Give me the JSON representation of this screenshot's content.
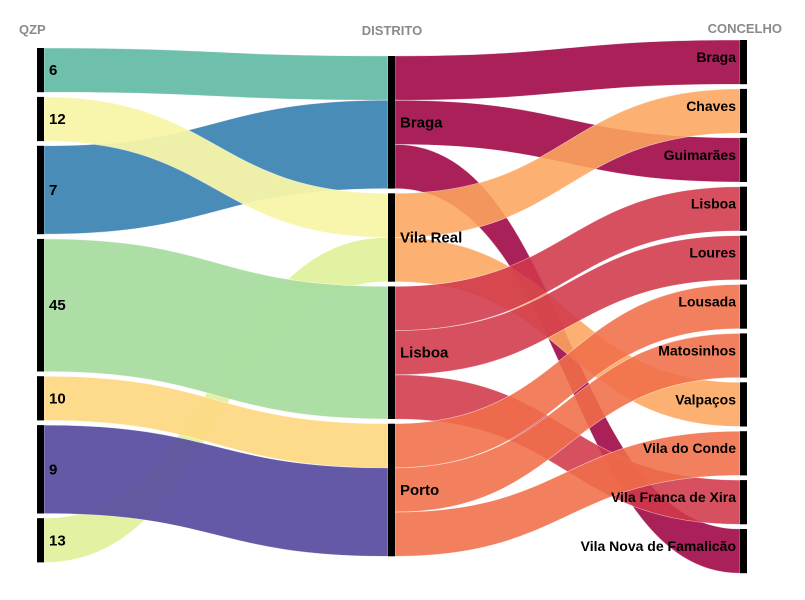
{
  "headers": {
    "left": "QZP",
    "middle": "DISTRITO",
    "right": "CONCELHO"
  },
  "chart_data": {
    "type": "sankey",
    "columns": [
      {
        "name": "QZP",
        "nodes": [
          {
            "id": "6",
            "label": "6",
            "value": 1,
            "color": "#66bda9"
          },
          {
            "id": "12",
            "label": "12",
            "value": 1,
            "color": "#f8f6a8"
          },
          {
            "id": "7",
            "label": "7",
            "value": 2,
            "color": "#3f86b4"
          },
          {
            "id": "45",
            "label": "45",
            "value": 3,
            "color": "#a8dca0"
          },
          {
            "id": "10",
            "label": "10",
            "value": 1,
            "color": "#fdd985"
          },
          {
            "id": "9",
            "label": "9",
            "value": 2,
            "color": "#5c50a1"
          },
          {
            "id": "13",
            "label": "13",
            "value": 1,
            "color": "#dff29d"
          }
        ]
      },
      {
        "name": "DISTRITO",
        "nodes": [
          {
            "id": "d-braga",
            "label": "Braga",
            "value": 3,
            "color": "#9e0142"
          },
          {
            "id": "d-vilareal",
            "label": "Vila Real",
            "value": 2,
            "color": "#fca65f"
          },
          {
            "id": "d-lisboa",
            "label": "Lisboa",
            "value": 3,
            "color": "#d0384a"
          },
          {
            "id": "d-porto",
            "label": "Porto",
            "value": 3,
            "color": "#f06e49"
          }
        ]
      },
      {
        "name": "CONCELHO",
        "nodes": [
          {
            "id": "c-braga",
            "label": "Braga",
            "value": 1
          },
          {
            "id": "c-chaves",
            "label": "Chaves",
            "value": 1
          },
          {
            "id": "c-guimaraes",
            "label": "Guimarães",
            "value": 1
          },
          {
            "id": "c-lisboa",
            "label": "Lisboa",
            "value": 1
          },
          {
            "id": "c-loures",
            "label": "Loures",
            "value": 1
          },
          {
            "id": "c-lousada",
            "label": "Lousada",
            "value": 1
          },
          {
            "id": "c-matosinhos",
            "label": "Matosinhos",
            "value": 1
          },
          {
            "id": "c-valpacos",
            "label": "Valpaços",
            "value": 1
          },
          {
            "id": "c-viladoconde",
            "label": "Vila do Conde",
            "value": 1
          },
          {
            "id": "c-vfx",
            "label": "Vila Franca de Xira",
            "value": 1
          },
          {
            "id": "c-vnf",
            "label": "Vila Nova de Famalicão",
            "value": 1
          }
        ]
      }
    ],
    "links": [
      {
        "source": "6",
        "target": "d-braga",
        "value": 1
      },
      {
        "source": "7",
        "target": "d-braga",
        "value": 2
      },
      {
        "source": "12",
        "target": "d-vilareal",
        "value": 1
      },
      {
        "source": "13",
        "target": "d-vilareal",
        "value": 1
      },
      {
        "source": "45",
        "target": "d-lisboa",
        "value": 3
      },
      {
        "source": "10",
        "target": "d-porto",
        "value": 1
      },
      {
        "source": "9",
        "target": "d-porto",
        "value": 2
      },
      {
        "source": "d-braga",
        "target": "c-braga",
        "value": 1
      },
      {
        "source": "d-braga",
        "target": "c-guimaraes",
        "value": 1
      },
      {
        "source": "d-braga",
        "target": "c-vnf",
        "value": 1
      },
      {
        "source": "d-vilareal",
        "target": "c-chaves",
        "value": 1
      },
      {
        "source": "d-vilareal",
        "target": "c-valpacos",
        "value": 1
      },
      {
        "source": "d-lisboa",
        "target": "c-lisboa",
        "value": 1
      },
      {
        "source": "d-lisboa",
        "target": "c-loures",
        "value": 1
      },
      {
        "source": "d-lisboa",
        "target": "c-vfx",
        "value": 1
      },
      {
        "source": "d-porto",
        "target": "c-lousada",
        "value": 1
      },
      {
        "source": "d-porto",
        "target": "c-matosinhos",
        "value": 1
      },
      {
        "source": "d-porto",
        "target": "c-viladoconde",
        "value": 1
      }
    ]
  }
}
